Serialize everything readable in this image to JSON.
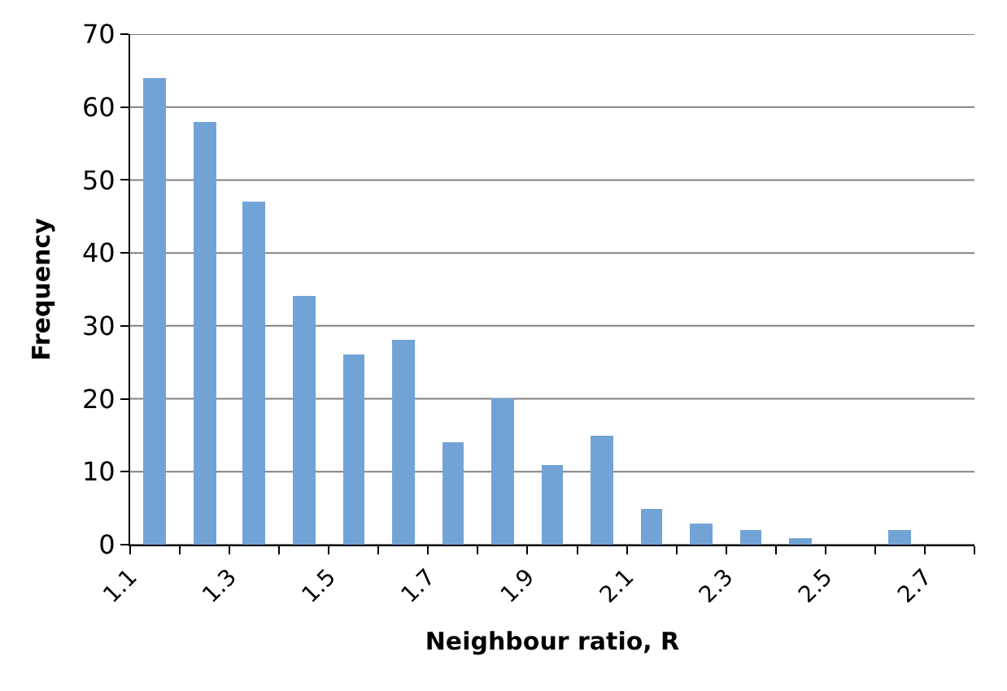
{
  "chart_data": {
    "type": "histogram",
    "xlabel": "Neighbour ratio, R",
    "ylabel": "Frequency",
    "bins": [
      1.1,
      1.2,
      1.3,
      1.4,
      1.5,
      1.6,
      1.7,
      1.8,
      1.9,
      2.0,
      2.1,
      2.2,
      2.3,
      2.4,
      2.5,
      2.6,
      2.7,
      2.8
    ],
    "values": [
      64,
      58,
      47,
      34,
      26,
      28,
      14,
      20,
      11,
      15,
      5,
      3,
      2,
      1,
      0,
      2,
      0
    ],
    "color": "#72a3d6",
    "xlim": [
      1.1,
      2.8
    ],
    "xticks": [
      1.1,
      {
        "value": 1.2,
        "label": null
      },
      1.3,
      {
        "value": 1.4,
        "label": null
      },
      1.5,
      {
        "value": 1.6,
        "label": null
      },
      1.7,
      {
        "value": 1.8,
        "label": null
      },
      1.9,
      {
        "value": 2.0,
        "label": null
      },
      2.1,
      {
        "value": 2.2,
        "label": null
      },
      2.3,
      {
        "value": 2.4,
        "label": null
      },
      2.5,
      {
        "value": 2.6,
        "label": null
      },
      2.7,
      {
        "value": 2.8,
        "label": null
      }
    ],
    "ylim": [
      0,
      70
    ],
    "yticks": [
      0,
      10,
      20,
      30,
      40,
      50,
      60,
      70
    ],
    "grid": "y"
  }
}
